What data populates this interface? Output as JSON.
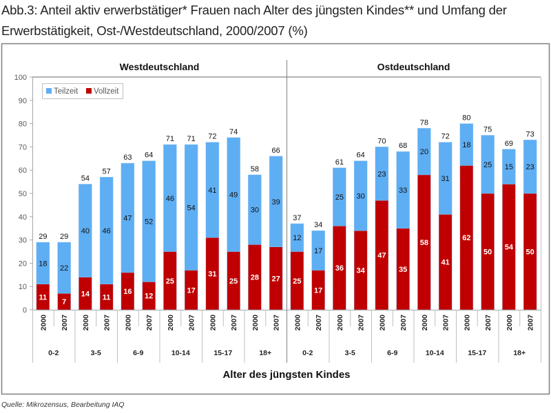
{
  "page": {
    "title_line1": "Abb.3: Anteil aktiv erwerbstätiger*  Frauen nach Alter des jüngsten Kindes** und Umfang der",
    "title_line2": "Erwerbstätigkeit, Ost-/Westdeutschland, 2000/2007 (%)",
    "source": "Quelle: Mikrozensus, Bearbeitung IAQ"
  },
  "colors": {
    "teilzeit": "#5eaef3",
    "vollzeit": "#c00000",
    "axis": "#a6a6a6",
    "frame": "#7f7f7f"
  },
  "chart_data": {
    "type": "bar",
    "stacked": true,
    "title": "Abb.3: Anteil aktiv erwerbstätiger* Frauen nach Alter des jüngsten Kindes** und Umfang der Erwerbstätigkeit, Ost-/Westdeutschland, 2000/2007 (%)",
    "xlabel": "Alter des jüngsten Kindes",
    "ylabel": "",
    "ylim": [
      0,
      100
    ],
    "yticks": [
      0,
      10,
      20,
      30,
      40,
      50,
      60,
      70,
      80,
      90,
      100
    ],
    "grid": false,
    "legend": {
      "placement": "top-left",
      "entries": [
        "Teilzeit",
        "Vollzeit"
      ]
    },
    "panels": [
      {
        "name": "Westdeutschland",
        "groups": [
          "0-2",
          "3-5",
          "6-9",
          "10-14",
          "15-17",
          "18+"
        ],
        "years": [
          "2000",
          "2007"
        ],
        "series": [
          {
            "name": "Vollzeit",
            "values": [
              11,
              7,
              14,
              11,
              16,
              12,
              25,
              17,
              31,
              25,
              28,
              27
            ]
          },
          {
            "name": "Teilzeit",
            "values": [
              18,
              22,
              40,
              46,
              47,
              52,
              46,
              54,
              41,
              49,
              30,
              39
            ]
          }
        ],
        "totals": [
          29,
          29,
          54,
          57,
          63,
          64,
          71,
          71,
          72,
          74,
          58,
          66
        ]
      },
      {
        "name": "Ostdeutschland",
        "groups": [
          "0-2",
          "3-5",
          "6-9",
          "10-14",
          "15-17",
          "18+"
        ],
        "years": [
          "2000",
          "2007"
        ],
        "series": [
          {
            "name": "Vollzeit",
            "values": [
              25,
              17,
              36,
              34,
              47,
              35,
              58,
              41,
              62,
              50,
              54,
              50
            ]
          },
          {
            "name": "Teilzeit",
            "values": [
              12,
              17,
              25,
              30,
              23,
              33,
              20,
              31,
              18,
              25,
              15,
              23
            ]
          }
        ],
        "totals": [
          37,
          34,
          61,
          64,
          70,
          68,
          78,
          72,
          80,
          75,
          69,
          73
        ]
      }
    ]
  }
}
